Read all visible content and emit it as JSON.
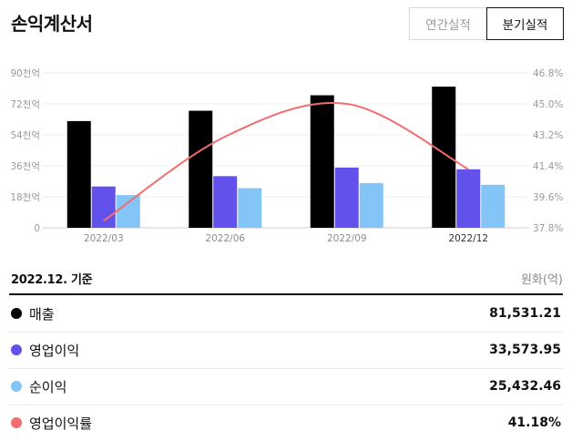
{
  "page": {
    "title": "손익계산서"
  },
  "toggles": {
    "annual": "연간실적",
    "quarter": "분기실적"
  },
  "chart_data": {
    "type": "bar",
    "categories": [
      "2022/03",
      "2022/06",
      "2022/09",
      "2022/12"
    ],
    "active_category": "2022/12",
    "y_left_ticks": [
      "0",
      "18천억",
      "36천억",
      "54천억",
      "72천억",
      "90천억"
    ],
    "y_left_range": [
      0,
      90
    ],
    "y_right_ticks": [
      "37.8%",
      "39.6%",
      "41.4%",
      "43.2%",
      "45.0%",
      "46.8%"
    ],
    "y_right_range": [
      37.8,
      46.8
    ],
    "series": [
      {
        "name": "매출",
        "color": "#000000",
        "values": [
          62,
          68,
          77,
          82
        ]
      },
      {
        "name": "영업이익",
        "color": "#6251ea",
        "values": [
          24,
          30,
          35,
          34
        ]
      },
      {
        "name": "순이익",
        "color": "#83c5f6",
        "values": [
          19,
          23,
          26,
          25
        ]
      }
    ],
    "line_series": {
      "name": "영업이익률",
      "color": "#f26d6d",
      "values": [
        38.2,
        43.1,
        45.0,
        41.2
      ]
    },
    "grid": true
  },
  "summary": {
    "basis": "2022.12. 기준",
    "unit": "원화(억)",
    "rows": [
      {
        "label": "매출",
        "value": "81,531.21",
        "color": "#000000"
      },
      {
        "label": "영업이익",
        "value": "33,573.95",
        "color": "#6251ea"
      },
      {
        "label": "순이익",
        "value": "25,432.46",
        "color": "#83c5f6"
      },
      {
        "label": "영업이익률",
        "value": "41.18%",
        "color": "#f26d6d"
      }
    ]
  }
}
